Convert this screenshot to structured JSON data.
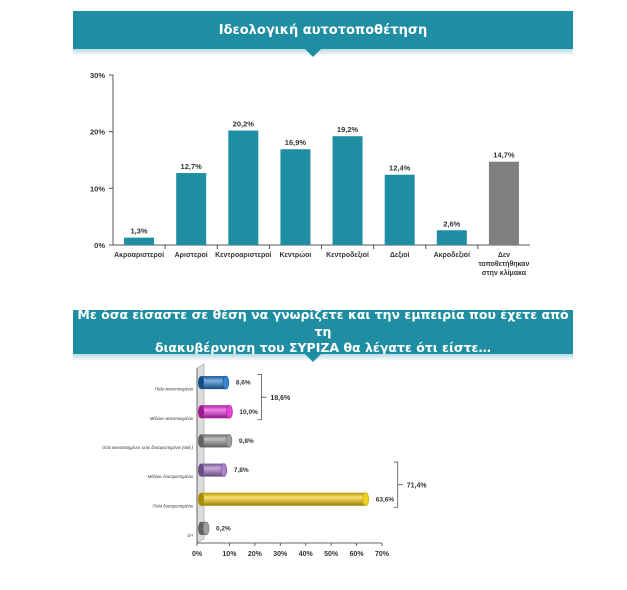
{
  "section1": {
    "title": "Ιδεολογική αυτοτοποθέτηση"
  },
  "section2": {
    "title_line1": "Με όσα είσαστε σε θέση να γνωρίζετε και την εμπειρία που έχετε από τη",
    "title_line2": "διακυβέρνηση του ΣΥΡΙΖΑ θα λέγατε ότι είστε…"
  },
  "chart_data": [
    {
      "type": "bar",
      "orientation": "vertical",
      "title": "Ιδεολογική αυτοτοποθέτηση",
      "categories": [
        [
          "Ακροαριστεροί"
        ],
        [
          "Αριστεροί"
        ],
        [
          "Κεντροαριστεροί"
        ],
        [
          "Κεντρώοι"
        ],
        [
          "Κεντροδεξιοί"
        ],
        [
          "Δεξιοί"
        ],
        [
          "Ακροδεξιοί"
        ],
        [
          "Δεν",
          "τοποθετήθηκαν",
          "στην κλίμακα"
        ]
      ],
      "values": [
        1.3,
        12.7,
        20.2,
        16.9,
        19.2,
        12.4,
        2.6,
        14.7
      ],
      "value_labels": [
        "1,3%",
        "12,7%",
        "20,2%",
        "16,9%",
        "19,2%",
        "12,4%",
        "2,6%",
        "14,7%"
      ],
      "ylim": [
        0,
        30
      ],
      "yticks": [
        0,
        10,
        20,
        30
      ],
      "ytick_labels": [
        "0%",
        "10%",
        "20%",
        "30%"
      ],
      "colors": [
        "#1f8ea3",
        "#1f8ea3",
        "#1f8ea3",
        "#1f8ea3",
        "#1f8ea3",
        "#1f8ea3",
        "#1f8ea3",
        "#808080"
      ],
      "grid": false
    },
    {
      "type": "bar",
      "orientation": "horizontal",
      "style": "3d-cylinder",
      "title": "Με όσα είσαστε σε θέση να γνωρίζετε και την εμπειρία που έχετε από τη διακυβέρνηση του ΣΥΡΙΖΑ θα λέγατε ότι είστε…",
      "categories": [
        "Πολύ ικανοποιημένοι",
        "Μάλλον ικανοποιημένοι",
        "Ούτε ικανοποιημένοι, ούτε δυσαρεστημένοι (αυθ.)",
        "Μάλλον δυσαρεστημένοι",
        "Πολύ δυσαρεστημένοι",
        "ΔΑ"
      ],
      "values": [
        8.6,
        10.0,
        9.8,
        7.8,
        63.6,
        0.2
      ],
      "value_labels": [
        "8,6%",
        "10,0%",
        "9,8%",
        "7,8%",
        "63,6%",
        "0,2%"
      ],
      "colors": [
        "#1a6fc4",
        "#e020d0",
        "#8c8c8c",
        "#9a6cc0",
        "#f0c800",
        "#8c8c8c"
      ],
      "xlim": [
        0,
        70
      ],
      "xticks": [
        0,
        10,
        20,
        30,
        40,
        50,
        60,
        70
      ],
      "xtick_labels": [
        "0%",
        "10%",
        "20%",
        "30%",
        "40%",
        "50%",
        "60%",
        "70%"
      ],
      "groups": [
        {
          "label": "18,6%",
          "members": [
            0,
            1
          ]
        },
        {
          "label": "71,4%",
          "members": [
            3,
            4
          ]
        }
      ],
      "grid": false
    }
  ]
}
